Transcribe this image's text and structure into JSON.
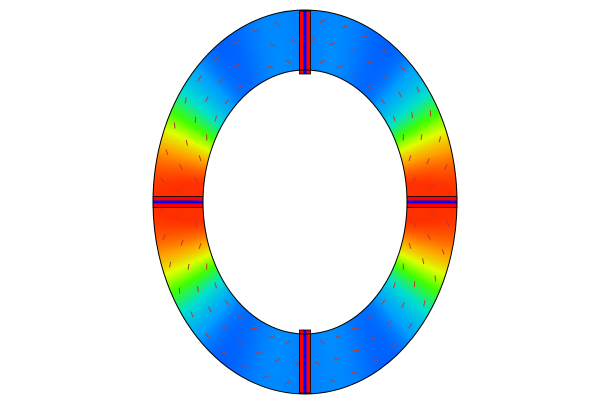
{
  "figure": {
    "type": "ring-field-plot",
    "background": "#ffffff",
    "outline_color": "#000000",
    "arrow_color": "#c0392b",
    "colormap": [
      {
        "stop": 0.0,
        "color": "#0000ff"
      },
      {
        "stop": 0.2,
        "color": "#00a0ff"
      },
      {
        "stop": 0.4,
        "color": "#00e0d0"
      },
      {
        "stop": 0.6,
        "color": "#40ff00"
      },
      {
        "stop": 0.75,
        "color": "#e0ff00"
      },
      {
        "stop": 0.88,
        "color": "#ffa000"
      },
      {
        "stop": 1.0,
        "color": "#ff3000"
      }
    ],
    "magnets": [
      {
        "id": "top",
        "colors": [
          "#ff0000",
          "#0000ff",
          "#ff0000"
        ]
      },
      {
        "id": "bottom",
        "colors": [
          "#ff0000",
          "#0000ff",
          "#ff0000"
        ]
      },
      {
        "id": "left",
        "colors": [
          "#ff0000",
          "#0000ff",
          "#ff0000"
        ]
      },
      {
        "id": "right",
        "colors": [
          "#ff0000",
          "#0000ff",
          "#ff0000"
        ]
      }
    ]
  }
}
